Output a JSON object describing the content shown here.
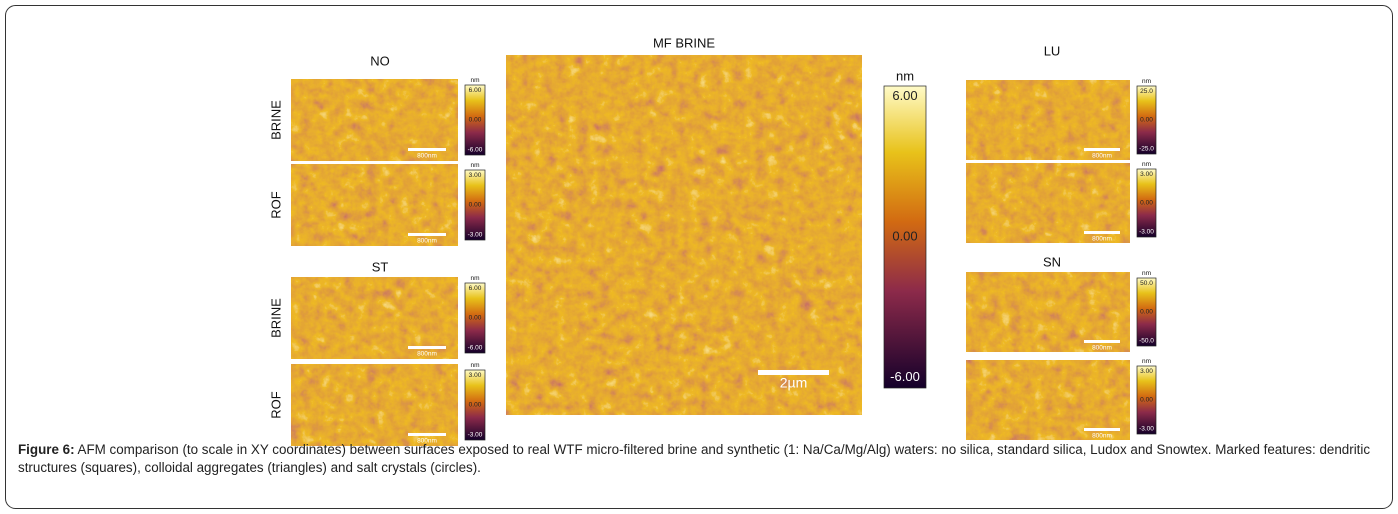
{
  "figure": {
    "left_groups": [
      {
        "title": "NO",
        "rows": [
          {
            "label": "BRINE",
            "unit": "nm",
            "ticks": [
              "6.00",
              "0.00",
              "-6.00"
            ],
            "scalebar": "800nm"
          },
          {
            "label": "ROF",
            "unit": "nm",
            "ticks": [
              "3.00",
              "0.00",
              "-3.00"
            ],
            "scalebar": "800nm"
          }
        ]
      },
      {
        "title": "ST",
        "rows": [
          {
            "label": "BRINE",
            "unit": "nm",
            "ticks": [
              "6.00",
              "0.00",
              "-6.00"
            ],
            "scalebar": "800nm"
          },
          {
            "label": "ROF",
            "unit": "nm",
            "ticks": [
              "3.00",
              "0.00",
              "-3.00"
            ],
            "scalebar": "800nm"
          }
        ]
      }
    ],
    "center": {
      "title": "MF BRINE",
      "unit": "nm",
      "ticks": [
        "6.00",
        "0.00",
        "-6.00"
      ],
      "scalebar": "2µm"
    },
    "right_groups": [
      {
        "title": "LU",
        "rows": [
          {
            "unit": "nm",
            "ticks": [
              "25.0",
              "0.00",
              "-25.0"
            ],
            "scalebar": "800nm"
          },
          {
            "unit": "nm",
            "ticks": [
              "3.00",
              "0.00",
              "-3.00"
            ],
            "scalebar": "800nm"
          }
        ]
      },
      {
        "title": "SN",
        "rows": [
          {
            "unit": "nm",
            "ticks": [
              "50.0",
              "0.00",
              "-50.0"
            ],
            "scalebar": "800nm"
          },
          {
            "unit": "nm",
            "ticks": [
              "3.00",
              "0.00",
              "-3.00"
            ],
            "scalebar": "800nm"
          }
        ]
      }
    ],
    "caption": {
      "label": "Figure 6:",
      "text": "AFM comparison (to scale in XY coordinates) between surfaces exposed to real WTF micro-filtered brine and synthetic (1: Na/Ca/Mg/Alg) waters: no silica, standard silica, Ludox and Snowtex. Marked features: dendritic structures (squares), colloidal aggregates (triangles) and salt crystals (circles)."
    }
  }
}
